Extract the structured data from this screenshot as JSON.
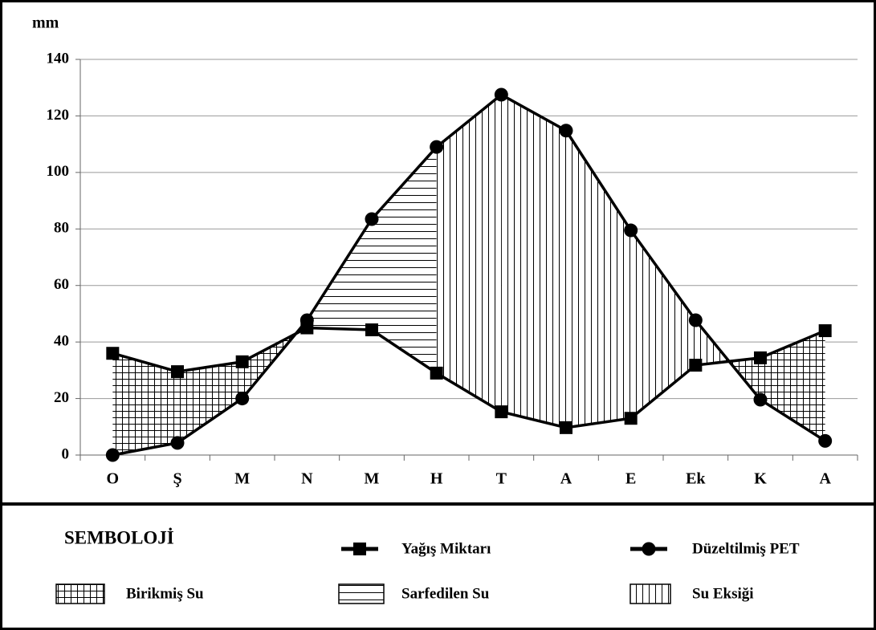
{
  "chart_data": {
    "type": "line",
    "y_label": "mm",
    "categories": [
      "O",
      "Ş",
      "M",
      "N",
      "M",
      "H",
      "T",
      "A",
      "E",
      "Ek",
      "K",
      "A"
    ],
    "series": [
      {
        "name": "Yağış Miktarı",
        "color": "#000000",
        "marker": "square",
        "values": [
          36,
          29.5,
          33,
          45,
          44.3,
          29,
          15.3,
          9.7,
          13,
          31.8,
          34.4,
          44
        ]
      },
      {
        "name": "Düzeltilmiş PET",
        "color": "#000000",
        "marker": "circle",
        "values": [
          0,
          4.3,
          20,
          47.7,
          83.5,
          109,
          127.5,
          114.8,
          79.5,
          47.7,
          19.6,
          5
        ]
      }
    ],
    "ylim": [
      0,
      140
    ],
    "yticks": [
      0,
      20,
      40,
      60,
      80,
      100,
      120,
      140
    ],
    "grid": true,
    "legend_title": "SEMBOLOJİ",
    "areas": [
      {
        "name": "Birikmiş Su",
        "pattern": "grid"
      },
      {
        "name": "Sarfedilen Su",
        "pattern": "horizontal"
      },
      {
        "name": "Su Eksiği",
        "pattern": "vertical"
      }
    ]
  }
}
